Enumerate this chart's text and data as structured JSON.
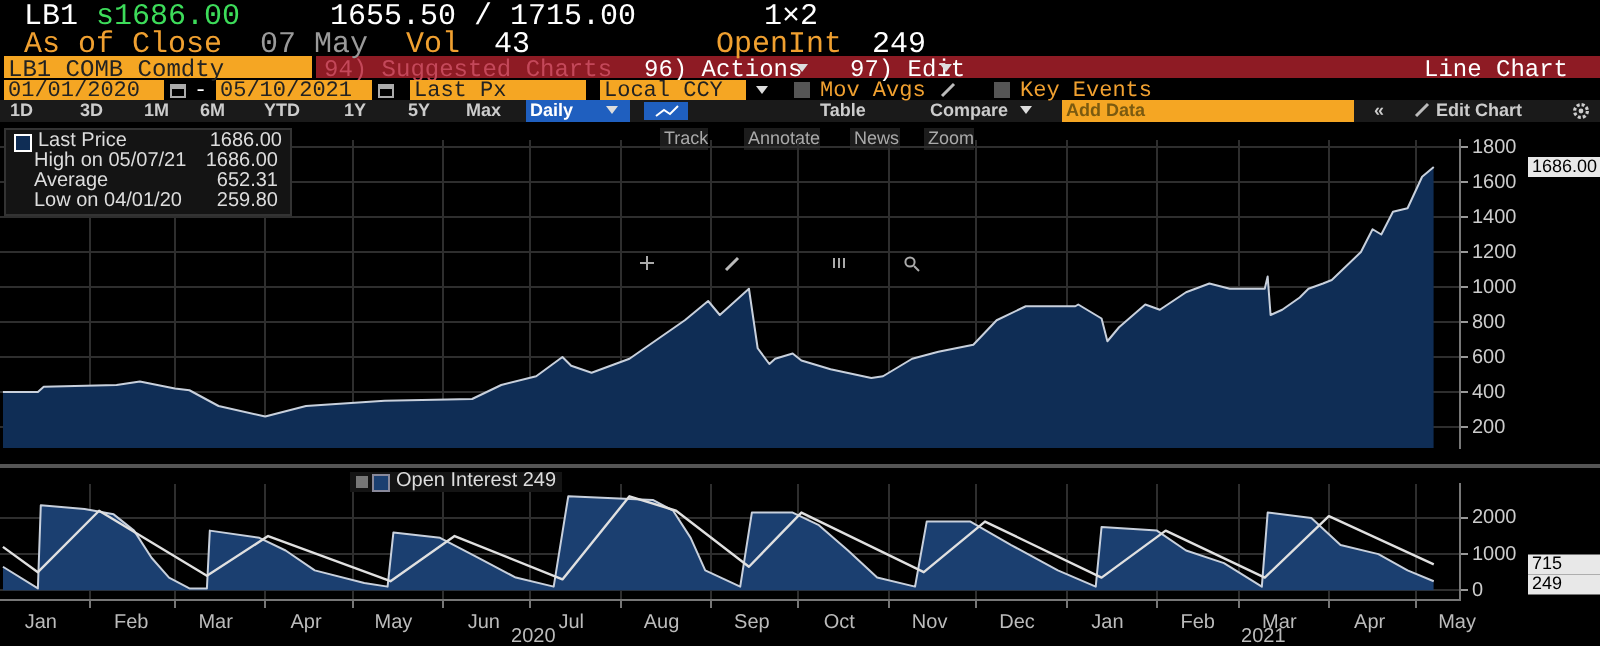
{
  "chart_data": [
    {
      "type": "area",
      "xlim": [
        "2020-01-01",
        "2021-05-16"
      ],
      "ylim": [
        80,
        1840
      ],
      "yticks": [
        200,
        400,
        600,
        800,
        1000,
        1200,
        1400,
        1600,
        1800
      ],
      "xticks": [
        {
          "value": "2020-02-01",
          "label": null
        },
        {
          "value": "2020-03-01",
          "label": null
        },
        {
          "value": "2020-04-01",
          "label": null
        },
        {
          "value": "2020-05-01",
          "label": null
        },
        {
          "value": "2020-06-01",
          "label": null
        },
        {
          "value": "2020-07-01",
          "label": null
        },
        {
          "value": "2020-08-01",
          "label": null
        },
        {
          "value": "2020-09-01",
          "label": null
        },
        {
          "value": "2020-10-01",
          "label": null
        },
        {
          "value": "2020-11-01",
          "label": null
        },
        {
          "value": "2020-12-01",
          "label": null
        },
        {
          "value": "2021-01-01",
          "label": null
        },
        {
          "value": "2021-02-01",
          "label": null
        },
        {
          "value": "2021-03-01",
          "label": null
        },
        {
          "value": "2021-04-01",
          "label": null
        },
        {
          "value": "2021-05-01",
          "label": null
        }
      ],
      "tick_labels": "y",
      "grid": true,
      "legend": "top left",
      "series": [
        {
          "name": "Last Price",
          "color": "#0f2d55",
          "x": [
            "2020-01-02",
            "2020-01-14",
            "2020-01-16",
            "2020-02-10",
            "2020-02-18",
            "2020-03-01",
            "2020-03-06",
            "2020-03-16",
            "2020-04-01",
            "2020-04-15",
            "2020-05-12",
            "2020-06-11",
            "2020-06-21",
            "2020-07-03",
            "2020-07-12",
            "2020-07-15",
            "2020-07-22",
            "2020-08-04",
            "2020-08-23",
            "2020-08-31",
            "2020-09-04",
            "2020-09-14",
            "2020-09-17",
            "2020-09-21",
            "2020-09-23",
            "2020-09-29",
            "2020-10-02",
            "2020-10-12",
            "2020-10-26",
            "2020-10-30",
            "2020-11-09",
            "2020-11-18",
            "2020-11-30",
            "2020-12-08",
            "2020-12-18",
            "2021-01-04",
            "2021-01-05",
            "2021-01-13",
            "2021-01-15",
            "2021-01-19",
            "2021-01-28",
            "2021-02-02",
            "2021-02-11",
            "2021-02-19",
            "2021-02-26",
            "2021-03-10",
            "2021-03-11",
            "2021-03-12",
            "2021-03-16",
            "2021-03-22",
            "2021-03-25",
            "2021-03-30",
            "2021-04-02",
            "2021-04-12",
            "2021-04-16",
            "2021-04-19",
            "2021-04-23",
            "2021-04-28",
            "2021-05-03",
            "2021-05-07"
          ],
          "values": [
            400,
            400,
            430,
            440,
            460,
            420,
            410,
            320,
            260,
            320,
            350,
            360,
            440,
            490,
            600,
            550,
            510,
            590,
            810,
            920,
            840,
            990,
            650,
            560,
            590,
            620,
            580,
            530,
            480,
            490,
            590,
            630,
            670,
            810,
            890,
            890,
            900,
            820,
            690,
            770,
            900,
            870,
            970,
            1020,
            990,
            990,
            1060,
            840,
            870,
            940,
            990,
            1020,
            1040,
            1200,
            1330,
            1300,
            1430,
            1450,
            1630,
            1686
          ]
        }
      ],
      "annotations": [
        "1686.00",
        "High on 05/07/21",
        "1686.00",
        "Average",
        "652.31",
        "Low on 04/01/20",
        "259.80",
        "1686.00",
        "LB1",
        "s1686.00",
        "1655.50 / 1715.00",
        "1×2",
        "As of Close",
        "07 May",
        "Vol",
        "43",
        "OpenInt",
        "249",
        "LB1 COMB Comdty",
        "94) Suggested Charts",
        "96) Actions",
        "97) Edit",
        "Line Chart",
        "01/01/2020",
        "-",
        "05/10/2021",
        "Last Px",
        "Local CCY",
        "Mov Avgs",
        "Key Events",
        "1D",
        "3D",
        "1M",
        "6M",
        "YTD",
        "1Y",
        "5Y",
        "Max",
        "Daily",
        "Table",
        "Compare",
        "Add Data",
        "«",
        "Edit Chart",
        "Track",
        "Annotate",
        "News",
        "Zoom"
      ]
    },
    {
      "type": "area",
      "xlim": [
        "2020-01-01",
        "2021-05-16"
      ],
      "ylim": [
        -270,
        2940
      ],
      "yticks": [
        0,
        1000,
        2000
      ],
      "xticks": [
        {
          "value": "2020-01-15",
          "label": "Jan"
        },
        {
          "value": "2020-02-01",
          "label": null
        },
        {
          "value": "2020-02-15",
          "label": "Feb"
        },
        {
          "value": "2020-03-01",
          "label": null
        },
        {
          "value": "2020-03-15",
          "label": "Mar"
        },
        {
          "value": "2020-04-01",
          "label": null
        },
        {
          "value": "2020-04-15",
          "label": "Apr"
        },
        {
          "value": "2020-05-01",
          "label": null
        },
        {
          "value": "2020-05-15",
          "label": "May"
        },
        {
          "value": "2020-06-01",
          "label": null
        },
        {
          "value": "2020-06-15",
          "label": "Jun"
        },
        {
          "value": "2020-07-01",
          "label": null
        },
        {
          "value": "2020-07-15",
          "label": "Jul"
        },
        {
          "value": "2020-08-01",
          "label": null
        },
        {
          "value": "2020-08-15",
          "label": "Aug"
        },
        {
          "value": "2020-09-01",
          "label": null
        },
        {
          "value": "2020-09-15",
          "label": "Sep"
        },
        {
          "value": "2020-10-01",
          "label": null
        },
        {
          "value": "2020-10-15",
          "label": "Oct"
        },
        {
          "value": "2020-11-01",
          "label": null
        },
        {
          "value": "2020-11-15",
          "label": "Nov"
        },
        {
          "value": "2020-12-01",
          "label": null
        },
        {
          "value": "2020-12-15",
          "label": "Dec"
        },
        {
          "value": "2021-01-01",
          "label": null
        },
        {
          "value": "2021-01-15",
          "label": "Jan"
        },
        {
          "value": "2021-02-01",
          "label": null
        },
        {
          "value": "2021-02-15",
          "label": "Feb"
        },
        {
          "value": "2021-03-01",
          "label": null
        },
        {
          "value": "2021-03-15",
          "label": "Mar"
        },
        {
          "value": "2021-04-01",
          "label": null
        },
        {
          "value": "2021-04-15",
          "label": "Apr"
        },
        {
          "value": "2021-05-01",
          "label": null
        },
        {
          "value": "2021-05-15",
          "label": "May"
        }
      ],
      "grid": true,
      "legend": "top left",
      "series": [
        {
          "name": "Open Interest 249",
          "color": "#1b3f70",
          "x": [
            "2020-01-02",
            "2020-01-14",
            "2020-01-15",
            "2020-01-30",
            "2020-02-09",
            "2020-02-16",
            "2020-02-22",
            "2020-02-28",
            "2020-03-06",
            "2020-03-12",
            "2020-03-13",
            "2020-03-30",
            "2020-04-08",
            "2020-04-18",
            "2020-05-05",
            "2020-05-13",
            "2020-05-15",
            "2020-05-31",
            "2020-06-13",
            "2020-06-26",
            "2020-07-09",
            "2020-07-14",
            "2020-08-12",
            "2020-08-19",
            "2020-08-25",
            "2020-08-30",
            "2020-09-11",
            "2020-09-15",
            "2020-09-29",
            "2020-10-08",
            "2020-10-18",
            "2020-10-28",
            "2020-11-10",
            "2020-11-14",
            "2020-11-29",
            "2020-12-13",
            "2020-12-29",
            "2021-01-11",
            "2021-01-13",
            "2021-02-01",
            "2021-02-11",
            "2021-02-24",
            "2021-03-09",
            "2021-03-11",
            "2021-03-26",
            "2021-04-05",
            "2021-04-18",
            "2021-04-28",
            "2021-05-07"
          ],
          "values": [
            650,
            50,
            2350,
            2250,
            2100,
            1650,
            900,
            350,
            50,
            50,
            1650,
            1450,
            1100,
            550,
            200,
            100,
            1600,
            1450,
            900,
            350,
            100,
            2600,
            2500,
            2200,
            1450,
            550,
            100,
            2150,
            2150,
            1800,
            1100,
            350,
            100,
            1900,
            1900,
            1250,
            550,
            100,
            1750,
            1650,
            1100,
            750,
            100,
            2150,
            2000,
            1250,
            1000,
            550,
            249
          ]
        },
        {
          "type": "line",
          "color": "#e0e0e0",
          "x": [
            "2020-01-02",
            "2020-01-14",
            "2020-02-04",
            "2020-03-12",
            "2020-04-02",
            "2020-05-14",
            "2020-06-05",
            "2020-07-12",
            "2020-08-04",
            "2020-08-20",
            "2020-09-14",
            "2020-10-02",
            "2020-11-13",
            "2020-12-04",
            "2021-01-13",
            "2021-02-04",
            "2021-03-10",
            "2021-04-01",
            "2021-05-07"
          ],
          "values": [
            1200,
            500,
            2200,
            400,
            1500,
            250,
            1500,
            300,
            2600,
            2200,
            650,
            2150,
            500,
            1900,
            350,
            1650,
            350,
            2050,
            715
          ]
        }
      ],
      "annotations": [
        "249",
        "715",
        "2020",
        "2021"
      ]
    }
  ]
}
